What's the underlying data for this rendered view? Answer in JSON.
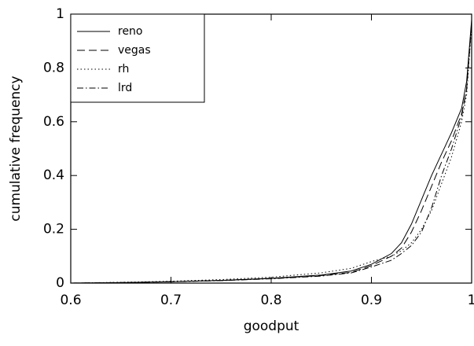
{
  "chart_data": {
    "type": "line",
    "x_label": "goodput",
    "y_label": "cumulative frequency",
    "x": [
      0.6,
      0.65,
      0.7,
      0.75,
      0.8,
      0.85,
      0.88,
      0.9,
      0.92,
      0.93,
      0.94,
      0.95,
      0.96,
      0.97,
      0.98,
      0.99,
      0.995,
      1
    ],
    "series": [
      {
        "name": "reno",
        "color": "#000000",
        "dash": "solid",
        "values": [
          0,
          0.002,
          0.005,
          0.01,
          0.018,
          0.03,
          0.045,
          0.07,
          0.11,
          0.15,
          0.22,
          0.31,
          0.4,
          0.48,
          0.56,
          0.65,
          0.75,
          0.98
        ]
      },
      {
        "name": "vegas",
        "color": "#000000",
        "dash": "dashed",
        "values": [
          0,
          0.002,
          0.005,
          0.01,
          0.017,
          0.028,
          0.04,
          0.065,
          0.1,
          0.13,
          0.19,
          0.27,
          0.36,
          0.45,
          0.53,
          0.63,
          0.72,
          0.97
        ]
      },
      {
        "name": "rh",
        "color": "#000000",
        "dash": "dotted",
        "values": [
          0,
          0.003,
          0.007,
          0.013,
          0.022,
          0.038,
          0.055,
          0.08,
          0.1,
          0.12,
          0.15,
          0.2,
          0.27,
          0.37,
          0.47,
          0.6,
          0.7,
          0.96
        ]
      },
      {
        "name": "lrd",
        "color": "#000000",
        "dash": "dashdot",
        "values": [
          0,
          0.002,
          0.005,
          0.009,
          0.016,
          0.026,
          0.038,
          0.06,
          0.085,
          0.11,
          0.14,
          0.19,
          0.28,
          0.4,
          0.5,
          0.62,
          0.72,
          0.97
        ]
      }
    ],
    "xlim": [
      0.6,
      1
    ],
    "ylim": [
      0,
      1
    ],
    "xticks": [
      0.6,
      0.7,
      0.8,
      0.9,
      1
    ],
    "yticks": [
      0,
      0.2,
      0.4,
      0.6,
      0.8,
      1
    ],
    "legend": "upper left"
  }
}
